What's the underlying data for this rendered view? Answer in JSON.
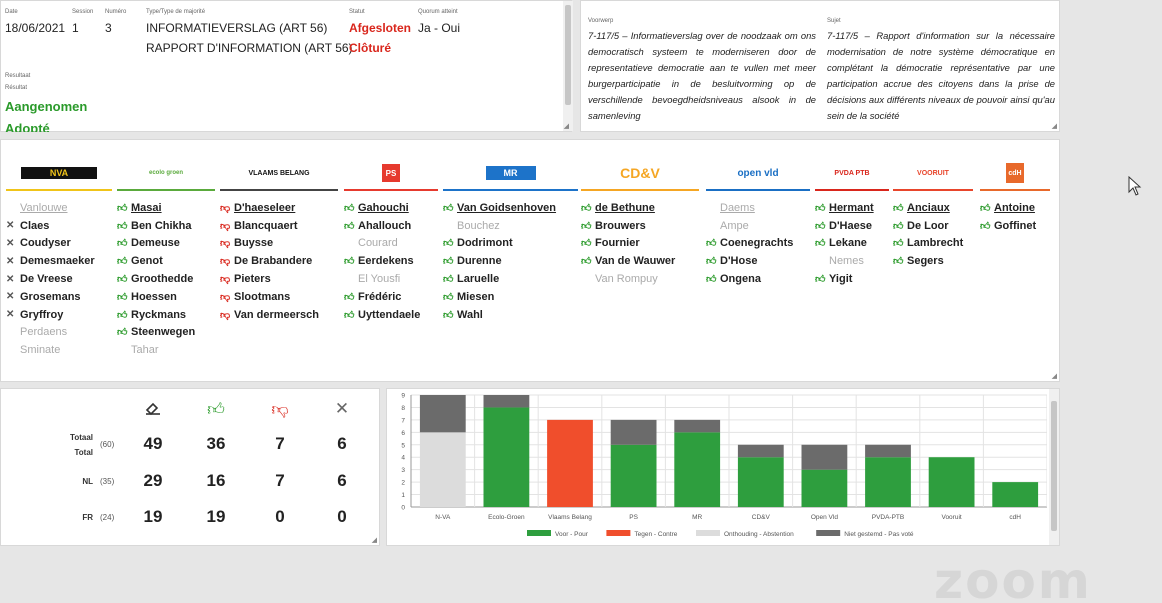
{
  "info": {
    "date_label": "Date",
    "date": "18/06/2021",
    "session_label": "Session",
    "session": "1",
    "numero_label": "Numéro",
    "numero": "3",
    "type_label": "Type/Type de majorité",
    "type_nl": "INFORMATIEVERSLAG (ART 56)",
    "type_fr": "RAPPORT D'INFORMATION (ART 56)",
    "statut_label": "Statut",
    "statut_nl": "Afgesloten",
    "statut_fr": "Clôturé",
    "quorum_label": "Quorum atteint",
    "quorum": "Ja - Oui",
    "resultaat_label": "Resultaat",
    "resultat_label": "Résultat",
    "result_nl": "Aangenomen",
    "result_fr": "Adopté"
  },
  "subject": {
    "voorwerp_label": "Voorwerp",
    "voorwerp_text": "7-117/5 – Informatieverslag over de noodzaak om ons democratisch systeem te moderniseren door de representatieve democratie aan te vullen met meer burgerparticipatie in de besluitvorming op de verschillende bevoegdheidsniveaus alsook in de samenleving",
    "sujet_label": "Sujet",
    "sujet_text": "7-117/5 – Rapport d'information sur la nécessaire modernisation de notre système démocratique en complétant la démocratie représentative par une participation accrue des citoyens dans la prise de décisions aux différents niveaux de pouvoir ainsi qu'au sein de la société"
  },
  "parties": [
    {
      "logo": "NVA",
      "color": "#f0c419",
      "members": [
        {
          "name": "Vanlouwe",
          "vote": "absent",
          "underline": true
        },
        {
          "name": "Claes",
          "vote": "abstain"
        },
        {
          "name": "Coudyser",
          "vote": "abstain"
        },
        {
          "name": "Demesmaeker",
          "vote": "abstain"
        },
        {
          "name": "De Vreese",
          "vote": "abstain"
        },
        {
          "name": "Grosemans",
          "vote": "abstain"
        },
        {
          "name": "Gryffroy",
          "vote": "abstain"
        },
        {
          "name": "Perdaens",
          "vote": "absent"
        },
        {
          "name": "Sminate",
          "vote": "absent"
        }
      ]
    },
    {
      "logo": "ecolo groen",
      "color": "#5aaa3c",
      "members": [
        {
          "name": "Masai",
          "vote": "yes",
          "underline": true
        },
        {
          "name": "Ben Chikha",
          "vote": "yes"
        },
        {
          "name": "Demeuse",
          "vote": "yes"
        },
        {
          "name": "Genot",
          "vote": "yes"
        },
        {
          "name": "Groothedde",
          "vote": "yes"
        },
        {
          "name": "Hoessen",
          "vote": "yes"
        },
        {
          "name": "Ryckmans",
          "vote": "yes"
        },
        {
          "name": "Steenwegen",
          "vote": "yes"
        },
        {
          "name": "Tahar",
          "vote": "absent"
        }
      ]
    },
    {
      "logo": "VLAAMS BELANG",
      "color": "#444444",
      "members": [
        {
          "name": "D'haeseleer",
          "vote": "no",
          "underline": true
        },
        {
          "name": "Blancquaert",
          "vote": "no"
        },
        {
          "name": "Buysse",
          "vote": "no"
        },
        {
          "name": "De Brabandere",
          "vote": "no"
        },
        {
          "name": "Pieters",
          "vote": "no"
        },
        {
          "name": "Slootmans",
          "vote": "no"
        },
        {
          "name": "Van dermeersch",
          "vote": "no"
        }
      ]
    },
    {
      "logo": "PS",
      "color": "#e63a2e",
      "members": [
        {
          "name": "Gahouchi",
          "vote": "yes",
          "underline": true
        },
        {
          "name": "Ahallouch",
          "vote": "yes"
        },
        {
          "name": "Courard",
          "vote": "absent"
        },
        {
          "name": "Eerdekens",
          "vote": "yes"
        },
        {
          "name": "El Yousfi",
          "vote": "absent"
        },
        {
          "name": "Frédéric",
          "vote": "yes"
        },
        {
          "name": "Uyttendaele",
          "vote": "yes"
        }
      ]
    },
    {
      "logo": "MR",
      "color": "#1d73c9",
      "members": [
        {
          "name": "Van Goidsenhoven",
          "vote": "yes",
          "underline": true
        },
        {
          "name": "Bouchez",
          "vote": "absent"
        },
        {
          "name": "Dodrimont",
          "vote": "yes"
        },
        {
          "name": "Durenne",
          "vote": "yes"
        },
        {
          "name": "Laruelle",
          "vote": "yes"
        },
        {
          "name": "Miesen",
          "vote": "yes"
        },
        {
          "name": "Wahl",
          "vote": "yes"
        }
      ]
    },
    {
      "logo": "CD&V",
      "color": "#f5a623",
      "members": [
        {
          "name": "de Bethune",
          "vote": "yes",
          "underline": true
        },
        {
          "name": "Brouwers",
          "vote": "yes"
        },
        {
          "name": "Fournier",
          "vote": "yes"
        },
        {
          "name": "Van de Wauwer",
          "vote": "yes"
        },
        {
          "name": "Van Rompuy",
          "vote": "absent"
        }
      ]
    },
    {
      "logo": "open vld",
      "color": "#1a6fc4",
      "members": [
        {
          "name": "Daems",
          "vote": "absent",
          "underline": true
        },
        {
          "name": "Ampe",
          "vote": "absent"
        },
        {
          "name": "Coenegrachts",
          "vote": "yes"
        },
        {
          "name": "D'Hose",
          "vote": "yes"
        },
        {
          "name": "Ongena",
          "vote": "yes"
        }
      ]
    },
    {
      "logo": "PVDA PTB",
      "color": "#d9261c",
      "members": [
        {
          "name": "Hermant",
          "vote": "yes",
          "underline": true
        },
        {
          "name": "D'Haese",
          "vote": "yes"
        },
        {
          "name": "Lekane",
          "vote": "yes"
        },
        {
          "name": "Nemes",
          "vote": "absent"
        },
        {
          "name": "Yigit",
          "vote": "yes"
        }
      ]
    },
    {
      "logo": "VOORUIT",
      "color": "#e8452b",
      "members": [
        {
          "name": "Anciaux",
          "vote": "yes",
          "underline": true
        },
        {
          "name": "De Loor",
          "vote": "yes"
        },
        {
          "name": "Lambrecht",
          "vote": "yes"
        },
        {
          "name": "Segers",
          "vote": "yes"
        }
      ]
    },
    {
      "logo": "cdH",
      "color": "#e8692b",
      "members": [
        {
          "name": "Antoine",
          "vote": "yes",
          "underline": true
        },
        {
          "name": "Goffinet",
          "vote": "yes"
        }
      ]
    }
  ],
  "totals": {
    "rows": [
      {
        "label": "Totaal",
        "label2": "Total",
        "n": "(60)",
        "present": "49",
        "yes": "36",
        "no": "7",
        "abstain": "6"
      },
      {
        "label": "NL",
        "n": "(35)",
        "present": "29",
        "yes": "16",
        "no": "7",
        "abstain": "6"
      },
      {
        "label": "FR",
        "n": "(24)",
        "present": "19",
        "yes": "19",
        "no": "0",
        "abstain": "0"
      }
    ]
  },
  "chart_data": {
    "type": "bar",
    "stacked": true,
    "categories": [
      "N-VA",
      "Ecolo-Groen",
      "Vlaams Belang",
      "PS",
      "MR",
      "CD&V",
      "Open Vld",
      "PVDA-PTB",
      "Vooruit",
      "cdH"
    ],
    "series": [
      {
        "name": "Voor - Pour",
        "color": "#2e9e3e",
        "values": [
          0,
          8,
          0,
          5,
          6,
          4,
          3,
          4,
          4,
          2
        ]
      },
      {
        "name": "Tegen - Contre",
        "color": "#f04e2c",
        "values": [
          0,
          0,
          7,
          0,
          0,
          0,
          0,
          0,
          0,
          0
        ]
      },
      {
        "name": "Onthouding - Abstention",
        "color": "#dcdcdc",
        "values": [
          6,
          0,
          0,
          0,
          0,
          0,
          0,
          0,
          0,
          0
        ]
      },
      {
        "name": "Niet gestemd - Pas voté",
        "color": "#6b6b6b",
        "values": [
          3,
          1,
          0,
          2,
          1,
          1,
          2,
          1,
          0,
          0
        ]
      }
    ],
    "ylim": [
      0,
      9
    ],
    "yticks": [
      "0",
      "1",
      "2",
      "3",
      "4",
      "5",
      "6",
      "7",
      "8",
      "9"
    ],
    "legend": "bottom"
  },
  "zoom": {
    "text": "zoom"
  }
}
